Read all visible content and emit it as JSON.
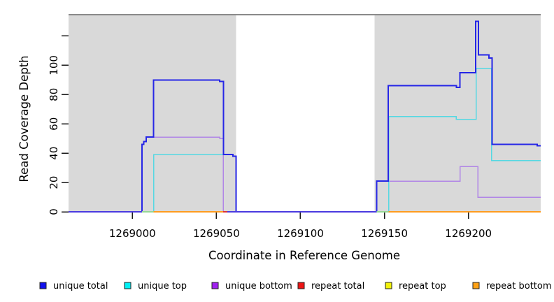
{
  "chart_data": {
    "type": "step-line",
    "title": "",
    "xlabel": "Coordinate in Reference Genome",
    "ylabel": "Read Coverage Depth",
    "xlim": [
      1268962,
      1269243
    ],
    "ylim": [
      0,
      135
    ],
    "grid": false,
    "x_ticks": [
      1269000,
      1269050,
      1269100,
      1269150,
      1269200
    ],
    "x_tick_labels": [
      "1269000",
      "1269050",
      "1269100",
      "1269150",
      "1269200"
    ],
    "y_ticks": [
      0,
      20,
      40,
      60,
      80,
      100,
      120
    ],
    "y_tick_labels": [
      "0",
      "20",
      "40",
      "60",
      "80",
      "100",
      ""
    ],
    "shade_color": "#d9d9d9",
    "shaded_regions": [
      {
        "from": 1268962,
        "to": 1269061.8
      },
      {
        "from": 1269144.1,
        "to": 1269243
      }
    ],
    "legend": {
      "position": "bottom",
      "entries": [
        "unique total",
        "unique top",
        "unique bottom",
        "repeat total",
        "repeat top",
        "repeat bottom"
      ]
    },
    "series": [
      {
        "name": "unique total",
        "legend_color": "#1111ee",
        "line_color": "#2626e6",
        "line_width": 2,
        "points": [
          [
            1268962,
            0
          ],
          [
            1269005.8,
            46
          ],
          [
            1269006.8,
            48
          ],
          [
            1269008.3,
            51
          ],
          [
            1269012.6,
            90
          ],
          [
            1269051.9,
            89
          ],
          [
            1269054.2,
            39
          ],
          [
            1269059.8,
            38
          ],
          [
            1269061.8,
            0
          ],
          [
            1269145.4,
            21
          ],
          [
            1269152.3,
            86
          ],
          [
            1269192.8,
            85
          ],
          [
            1269194.9,
            95
          ],
          [
            1269204.3,
            130
          ],
          [
            1269205.9,
            107
          ],
          [
            1269212.2,
            105
          ],
          [
            1269214,
            46
          ],
          [
            1269240.9,
            45
          ]
        ]
      },
      {
        "name": "unique top",
        "legend_color": "#00f0f5",
        "line_color": "#55d8e2",
        "line_width": 1.5,
        "points": [
          [
            1268962,
            0
          ],
          [
            1269012.6,
            39
          ],
          [
            1269059.8,
            38
          ],
          [
            1269061.8,
            0
          ],
          [
            1269152.5,
            65
          ],
          [
            1269192.8,
            63
          ],
          [
            1269204.5,
            98
          ],
          [
            1269213.8,
            35
          ]
        ]
      },
      {
        "name": "unique bottom",
        "legend_color": "#a020f0",
        "line_color": "#b186e6",
        "line_width": 1.5,
        "points": [
          [
            1268962,
            0
          ],
          [
            1269005.8,
            46
          ],
          [
            1269006.8,
            48
          ],
          [
            1269008.3,
            51
          ],
          [
            1269051.9,
            50
          ],
          [
            1269054,
            0
          ],
          [
            1269145.4,
            21
          ],
          [
            1269194.9,
            31
          ],
          [
            1269205.6,
            10
          ]
        ]
      },
      {
        "name": "repeat total",
        "legend_color": "#ee1414",
        "line_color": "#dd3333",
        "line_width": 2,
        "points": []
      },
      {
        "name": "repeat top",
        "legend_color": "#f2f20a",
        "line_color": "#e8e840",
        "line_width": 2,
        "points": []
      },
      {
        "name": "repeat bottom",
        "legend_color": "#ffa114",
        "line_color": "#ff9c1f",
        "line_width": 2,
        "points": []
      }
    ],
    "baseline_segments": [
      {
        "series": "unique total at 0",
        "color": "#4a3ae0",
        "from": 1268962,
        "to": 1269005.8
      },
      {
        "series": "repeat top over unique top at 0",
        "color": "#95d795",
        "from": 1269005.8,
        "to": 1269012.6
      },
      {
        "series": "repeat bottom at 0",
        "color": "#ff9c1f",
        "from": 1269012.6,
        "to": 1269054
      },
      {
        "series": "repeat total at 0",
        "color": "#dd3333",
        "from": 1269054,
        "to": 1269056.4
      },
      {
        "series": "unique total at 0",
        "color": "#4a3ae0",
        "from": 1269056.4,
        "to": 1269145.4
      },
      {
        "series": "repeat top over unique top at 0",
        "color": "#95d795",
        "from": 1269145.4,
        "to": 1269152.5
      },
      {
        "series": "repeat bottom at 0",
        "color": "#ff9c1f",
        "from": 1269152.5,
        "to": 1269243
      }
    ]
  }
}
